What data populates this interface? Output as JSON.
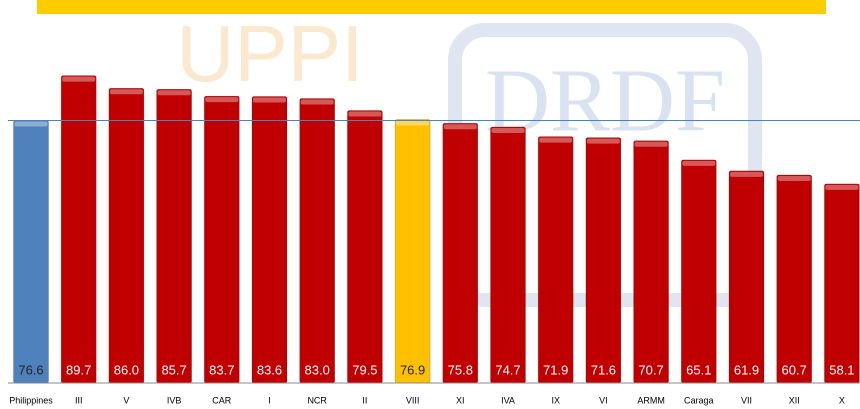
{
  "chart_data": {
    "type": "bar",
    "watermarks": [
      "UPPI",
      "DRDF"
    ],
    "categories": [
      "Philippines",
      "III",
      "V",
      "IVB",
      "CAR",
      "I",
      "NCR",
      "II",
      "VIII",
      "XI",
      "IVA",
      "IX",
      "VI",
      "ARMM",
      "Caraga",
      "VII",
      "XII",
      "X"
    ],
    "values": [
      76.6,
      89.7,
      86.0,
      85.7,
      83.7,
      83.6,
      83.0,
      79.5,
      76.9,
      75.8,
      74.7,
      71.9,
      71.6,
      70.7,
      65.1,
      61.9,
      60.7,
      58.1
    ],
    "value_labels": [
      "76.6",
      "89.7",
      "86.0",
      "85.7",
      "83.7",
      "83.6",
      "83.0",
      "79.5",
      "76.9",
      "75.8",
      "74.7",
      "71.9",
      "71.6",
      "70.7",
      "65.1",
      "61.9",
      "60.7",
      "58.1"
    ],
    "colors": [
      "#4f81bd",
      "#c00000",
      "#c00000",
      "#c00000",
      "#c00000",
      "#c00000",
      "#c00000",
      "#c00000",
      "#ffc000",
      "#c00000",
      "#c00000",
      "#c00000",
      "#c00000",
      "#c00000",
      "#c00000",
      "#c00000",
      "#c00000",
      "#c00000"
    ],
    "reference_line_color": "#4f81bd",
    "ylim": [
      0,
      110
    ]
  }
}
